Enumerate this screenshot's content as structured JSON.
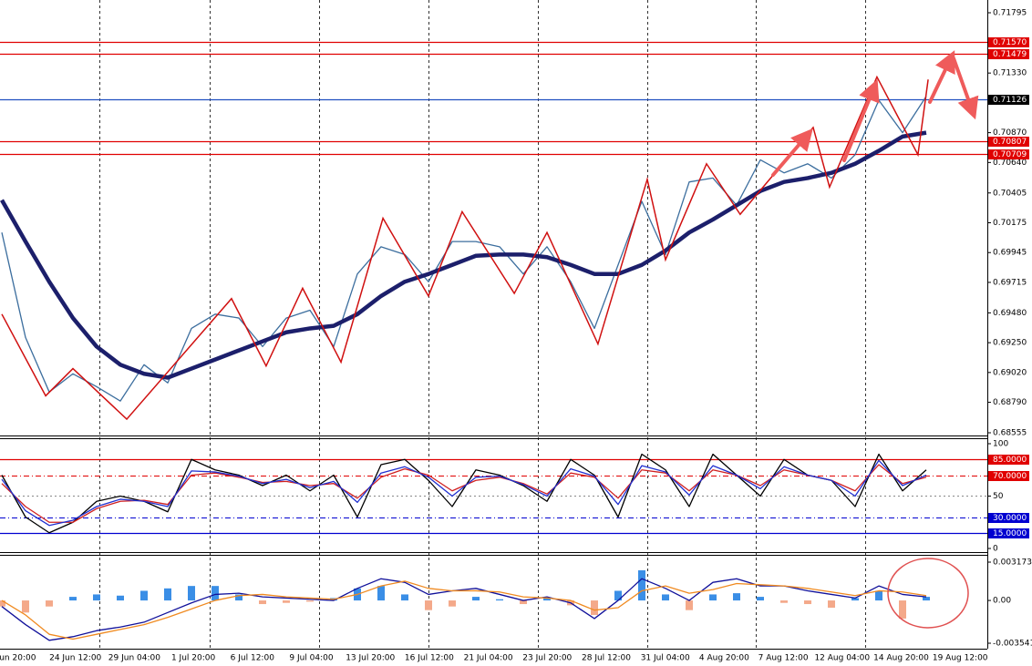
{
  "chart_data": [
    {
      "type": "line",
      "ylim": [
        0.68555,
        0.71795
      ],
      "yticks": [
        {
          "value": 0.71795,
          "label": "0.71795"
        },
        {
          "value": 0.7133,
          "label": "0.71330"
        },
        {
          "value": 0.7087,
          "label": "0.70870"
        },
        {
          "value": 0.7064,
          "label": "0.70640"
        },
        {
          "value": 0.70405,
          "label": "0.70405"
        },
        {
          "value": 0.70175,
          "label": "0.70175"
        },
        {
          "value": 0.69945,
          "label": "0.69945"
        },
        {
          "value": 0.69715,
          "label": "0.69715"
        },
        {
          "value": 0.6948,
          "label": "0.69480"
        },
        {
          "value": 0.6925,
          "label": "0.69250"
        },
        {
          "value": 0.6902,
          "label": "0.69020"
        },
        {
          "value": 0.6879,
          "label": "0.68790"
        },
        {
          "value": 0.68555,
          "label": "0.68555"
        }
      ],
      "levels": [
        {
          "value": 0.7157,
          "label": "0.71570",
          "color": "#e00000",
          "style": "solid"
        },
        {
          "value": 0.71479,
          "label": "0.71479",
          "color": "#e00000",
          "style": "solid"
        },
        {
          "value": 0.71126,
          "label": "0.71126",
          "color": "#2050c0",
          "box": "#000000",
          "style": "solid"
        },
        {
          "value": 0.70807,
          "label": "0.70807",
          "color": "#e00000",
          "style": "solid"
        },
        {
          "value": 0.70709,
          "label": "0.70709",
          "color": "#e00000",
          "style": "solid"
        }
      ],
      "series": [
        {
          "color": "#3c6e9e",
          "values": [
            0.701,
            0.6929,
            0.6887,
            0.6901,
            0.6891,
            0.688,
            0.6908,
            0.6894,
            0.6936,
            0.6947,
            0.6944,
            0.6922,
            0.6944,
            0.695,
            0.6922,
            0.6978,
            0.6999,
            0.6993,
            0.6972,
            0.7003,
            0.7003,
            0.6999,
            0.6978,
            0.6999,
            0.6972,
            0.6936,
            0.6985,
            0.7034,
            0.6993,
            0.7049,
            0.7052,
            0.7031,
            0.7066,
            0.7056,
            0.7063,
            0.7052,
            0.707,
            0.7112,
            0.7087,
            0.7115
          ]
        },
        {
          "color": "#1c1f6b",
          "thick": true,
          "values": [
            0.7035,
            0.7003,
            0.6972,
            0.6944,
            0.6922,
            0.6908,
            0.6901,
            0.6898,
            0.6905,
            0.6912,
            0.6919,
            0.6926,
            0.6933,
            0.6936,
            0.6938,
            0.6947,
            0.6961,
            0.6972,
            0.6978,
            0.6985,
            0.6992,
            0.6993,
            0.6993,
            0.6991,
            0.6985,
            0.6978,
            0.6978,
            0.6985,
            0.6996,
            0.701,
            0.702,
            0.7031,
            0.7042,
            0.7049,
            0.7052,
            0.7056,
            0.7063,
            0.7073,
            0.7084,
            0.7087
          ]
        }
      ],
      "zigzag": {
        "color": "#d01010",
        "x": [
          0,
          1.85,
          3,
          5.27,
          9.69,
          11.15,
          12.69,
          14.31,
          16.08,
          18,
          19.42,
          21.62,
          23,
          25.15,
          27.23,
          28,
          29.73,
          31.15,
          34.23,
          34.92,
          36.92,
          38.65,
          39.08
        ],
        "y": [
          0.6947,
          0.6884,
          0.6905,
          0.6866,
          0.6959,
          0.6907,
          0.6967,
          0.691,
          0.7021,
          0.6961,
          0.7026,
          0.6963,
          0.701,
          0.6924,
          0.7051,
          0.6989,
          0.7063,
          0.7024,
          0.7091,
          0.7045,
          0.713,
          0.707,
          0.7128
        ]
      }
    },
    {
      "type": "line",
      "ylim": [
        0,
        100
      ],
      "yticks": [
        100,
        50,
        0
      ],
      "grid": true,
      "levels": [
        {
          "value": 85,
          "label": "85.0000",
          "color": "#e00000",
          "style": "solid"
        },
        {
          "value": 70,
          "label": "70.0000",
          "color": "#e00000",
          "style": "dashdot"
        },
        {
          "value": 30,
          "label": "30.0000",
          "color": "#0000d0",
          "style": "dashdot"
        },
        {
          "value": 15,
          "label": "15.0000",
          "color": "#0000d0",
          "style": "solid"
        }
      ],
      "series": [
        {
          "color": "#000000",
          "values": [
            70,
            30,
            15,
            25,
            45,
            50,
            45,
            35,
            85,
            75,
            70,
            60,
            70,
            55,
            70,
            30,
            80,
            85,
            65,
            40,
            75,
            70,
            60,
            45,
            85,
            70,
            30,
            90,
            75,
            40,
            90,
            70,
            50,
            85,
            70,
            65,
            40,
            90,
            55,
            75
          ]
        },
        {
          "color": "#d02020",
          "values": [
            62,
            40,
            25,
            25,
            38,
            45,
            46,
            42,
            70,
            72,
            68,
            63,
            64,
            60,
            62,
            48,
            68,
            76,
            70,
            55,
            65,
            68,
            62,
            52,
            72,
            68,
            48,
            75,
            72,
            55,
            75,
            70,
            60,
            75,
            70,
            65,
            55,
            80,
            62,
            68
          ]
        },
        {
          "color": "#2030d0",
          "values": [
            66,
            36,
            22,
            27,
            40,
            47,
            45,
            40,
            74,
            73,
            69,
            62,
            66,
            58,
            64,
            44,
            72,
            78,
            68,
            50,
            68,
            69,
            61,
            50,
            76,
            69,
            42,
            79,
            73,
            51,
            79,
            70,
            57,
            78,
            70,
            65,
            50,
            84,
            60,
            70
          ]
        }
      ]
    },
    {
      "type": "macd",
      "ylim": [
        -0.003541,
        0.0031736
      ],
      "yticks": [
        0.0031736,
        {
          "value": 0,
          "label": "0.00"
        },
        -0.003541
      ],
      "series": [
        {
          "color": "#10109a",
          "values": [
            -0.0005,
            -0.002,
            -0.0033,
            -0.003,
            -0.0025,
            -0.0022,
            -0.0018,
            -0.001,
            -0.0002,
            0.0005,
            0.0006,
            0.0003,
            0.0002,
            0.0001,
            0,
            0.001,
            0.0018,
            0.0015,
            0.0005,
            0.0008,
            0.001,
            0.0005,
            0,
            0.0003,
            -0.0002,
            -0.0015,
            0,
            0.0018,
            0.001,
            0,
            0.0015,
            0.0018,
            0.0012,
            0.0012,
            0.0008,
            0.0005,
            0.0002,
            0.0012,
            0.0005,
            0.0003
          ]
        },
        {
          "color": "#f08a20",
          "values": [
            0,
            -0.0012,
            -0.0028,
            -0.0032,
            -0.0028,
            -0.0024,
            -0.002,
            -0.0014,
            -0.0007,
            0,
            0.0004,
            0.0005,
            0.0003,
            0.0002,
            0.0001,
            0.0005,
            0.0012,
            0.0016,
            0.001,
            0.0008,
            0.0008,
            0.0007,
            0.0003,
            0.0002,
            0,
            -0.0008,
            -0.0006,
            0.0008,
            0.0012,
            0.0006,
            0.0009,
            0.0014,
            0.0013,
            0.0012,
            0.001,
            0.0007,
            0.0004,
            0.0008,
            0.0007,
            0.0004
          ]
        }
      ],
      "histogram": {
        "positive_color": "#3a8ee6",
        "negative_color": "#f4a98a",
        "values": [
          -0.0005,
          -0.001,
          -0.0005,
          0.0003,
          0.0005,
          0.0004,
          0.0008,
          0.001,
          0.0012,
          0.0012,
          0.0005,
          -0.0003,
          -0.0002,
          -0.0001,
          0.0002,
          0.001,
          0.0012,
          0.0005,
          -0.0008,
          -0.0005,
          0.0003,
          0.0001,
          -0.0003,
          0.0002,
          -0.0004,
          -0.0012,
          0.0008,
          0.0025,
          0.0005,
          -0.0008,
          0.0005,
          0.0006,
          0.0003,
          -0.0002,
          -0.0003,
          -0.0006,
          0.0002,
          0.0008,
          -0.0015,
          0.0003
        ]
      },
      "xtick_labels": [
        "Jun 20:00",
        "24 Jun 12:00",
        "29 Jun 04:00",
        "1 Jul 20:00",
        "6 Jul 12:00",
        "9 Jul 04:00",
        "13 Jul 20:00",
        "16 Jul 12:00",
        "21 Jul 04:00",
        "23 Jul 20:00",
        "28 Jul 12:00",
        "31 Jul 04:00",
        "4 Aug 20:00",
        "7 Aug 12:00",
        "12 Aug 04:00",
        "14 Aug 20:00",
        "19 Aug 12:00"
      ]
    }
  ]
}
